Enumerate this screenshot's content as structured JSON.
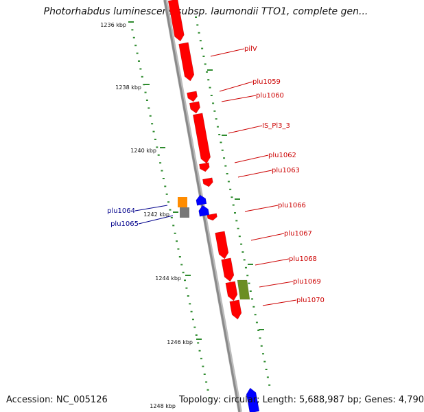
{
  "title": "Photorhabdus luminescens subsp. laumondii TTO1, complete gen...",
  "footer": {
    "accession": "Accession: NC_005126",
    "summary": "Topology: circular; Length: 5,688,987 bp; Genes: 4,790"
  },
  "colors": {
    "forward_gene": "#ff0000",
    "reverse_gene": "#0000ff",
    "orange_feature": "#ff8c00",
    "grey_feature": "#777777",
    "olive_feature": "#6b8e23",
    "backbone": "#8a8a8a",
    "tick": "#2e8b2e",
    "forward_label": "#cc0000",
    "reverse_label": "#00008b"
  },
  "ruler": {
    "labels": [
      "1236 kbp",
      "1238 kbp",
      "1240 kbp",
      "1242 kbp",
      "1244 kbp",
      "1246 kbp",
      "1248 kbp"
    ]
  },
  "labels": {
    "forward": [
      "pilV",
      "plu1059",
      "plu1060",
      "IS_Pl3_3",
      "plu1062",
      "plu1063",
      "plu1066",
      "plu1067",
      "plu1068",
      "plu1069",
      "plu1070"
    ],
    "reverse": [
      "plu1064",
      "plu1065"
    ]
  }
}
